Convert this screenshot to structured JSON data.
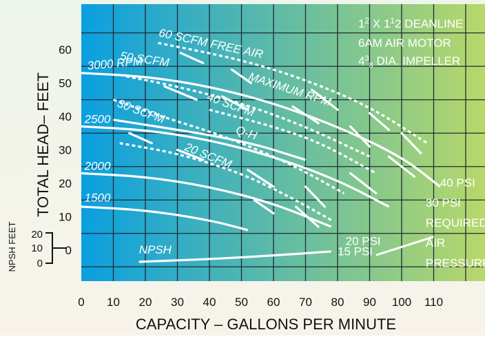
{
  "chart_data": {
    "type": "line",
    "title": "",
    "specs": {
      "line1_a": "1",
      "line1_b": "2",
      "line1_c": " X 1",
      "line1_d": "1",
      "line1_e": "2",
      "line1_f": " DEANLINE",
      "line2": "6AM AIR MOTOR",
      "line3_a": "4",
      "line3_b": "3",
      "line3_c": "8",
      "line3_d": " DIA. IMPELLER"
    },
    "xlabel": "CAPACITY – GALLONS PER MINUTE",
    "ylabel": "TOTAL HEAD– FEET",
    "npsh_axis_label": "NPSH FEET",
    "xlim": [
      0,
      120
    ],
    "ylim": [
      -10,
      70
    ],
    "x_ticks": [
      "0",
      "10",
      "20",
      "30",
      "40",
      "50",
      "60",
      "70",
      "80",
      "90",
      "100",
      "110"
    ],
    "y_ticks": [
      "60",
      "50",
      "40",
      "30",
      "20",
      "10",
      "0"
    ],
    "npsh_ticks": [
      "20",
      "10",
      "0"
    ],
    "grid": true,
    "background_gradient": [
      "#0a9fe0",
      "#b8d86a"
    ],
    "series": [
      {
        "name": "3000 RPM",
        "kind": "speed",
        "x": [
          0,
          20,
          40,
          60,
          80,
          100,
          112
        ],
        "y": [
          53,
          52,
          49,
          44,
          37,
          28,
          19
        ]
      },
      {
        "name": "2500",
        "kind": "speed",
        "x": [
          0,
          20,
          40,
          60,
          80,
          96
        ],
        "y": [
          37,
          36,
          33,
          28,
          21,
          13
        ]
      },
      {
        "name": "2000",
        "kind": "speed",
        "x": [
          0,
          20,
          40,
          60,
          78
        ],
        "y": [
          23,
          22,
          19,
          14,
          7
        ]
      },
      {
        "name": "1500",
        "kind": "speed",
        "x": [
          0,
          20,
          40,
          52
        ],
        "y": [
          13,
          12,
          9,
          6
        ]
      },
      {
        "name": "NPSH",
        "kind": "npsh",
        "x": [
          18,
          40,
          60,
          78
        ],
        "y": [
          -3.5,
          -2.7,
          -1.6,
          -0.4
        ]
      }
    ],
    "max_rpm_line": {
      "name": "MAXIMUM RPM",
      "x": [
        24,
        50,
        70,
        90,
        108
      ],
      "y": [
        62,
        57,
        51,
        43,
        32
      ]
    },
    "scfm_lines": [
      {
        "name": "60 SCFM FREE AIR",
        "x": [
          24,
          50,
          70,
          90,
          108
        ],
        "y": [
          62,
          57,
          51,
          43,
          32
        ]
      },
      {
        "name": "50 SCFM",
        "x": [
          14,
          30,
          50,
          70,
          90
        ],
        "y": [
          52,
          49,
          44,
          37,
          28
        ]
      },
      {
        "name": "40 SCFM",
        "x": [
          40,
          60,
          75,
          92
        ],
        "y": [
          42,
          37,
          32,
          23
        ]
      },
      {
        "name": "30 SCFM",
        "x": [
          10,
          25,
          45,
          65,
          82
        ],
        "y": [
          45,
          40,
          34,
          26,
          17
        ]
      },
      {
        "name": "20 SCFM",
        "x": [
          12,
          30,
          50,
          65,
          78
        ],
        "y": [
          32,
          29,
          23,
          16,
          9
        ]
      },
      {
        "name": "Q-H",
        "x": [
          10,
          50,
          70
        ],
        "y": [
          39,
          33,
          27
        ]
      }
    ],
    "pressure_labels": [
      "40 PSI",
      "30 PSI",
      "20 PSI",
      "15 PSI"
    ],
    "required_label": [
      "REQUIRED",
      "AIR",
      "PRESSURE"
    ],
    "isobar_dashes": [
      {
        "x1": 31,
        "y1": 59,
        "x2": 38,
        "y2": 56
      },
      {
        "x1": 47,
        "y1": 54,
        "x2": 53,
        "y2": 50
      },
      {
        "x1": 72,
        "y1": 48,
        "x2": 80,
        "y2": 42
      },
      {
        "x1": 90,
        "y1": 41,
        "x2": 96,
        "y2": 36
      },
      {
        "x1": 100,
        "y1": 35,
        "x2": 106,
        "y2": 29
      },
      {
        "x1": 26,
        "y1": 49,
        "x2": 36,
        "y2": 45
      },
      {
        "x1": 44,
        "y1": 46,
        "x2": 52,
        "y2": 42
      },
      {
        "x1": 66,
        "y1": 43,
        "x2": 74,
        "y2": 38
      },
      {
        "x1": 84,
        "y1": 37,
        "x2": 90,
        "y2": 31
      },
      {
        "x1": 96,
        "y1": 28,
        "x2": 104,
        "y2": 22
      },
      {
        "x1": 15,
        "y1": 35,
        "x2": 22,
        "y2": 32
      },
      {
        "x1": 30,
        "y1": 30,
        "x2": 38,
        "y2": 27
      },
      {
        "x1": 52,
        "y1": 24,
        "x2": 60,
        "y2": 19
      },
      {
        "x1": 70,
        "y1": 19,
        "x2": 76,
        "y2": 13
      },
      {
        "x1": 84,
        "y1": 23,
        "x2": 92,
        "y2": 17
      },
      {
        "x1": 54,
        "y1": 15,
        "x2": 60,
        "y2": 11
      },
      {
        "x1": 67,
        "y1": 13,
        "x2": 74,
        "y2": 7
      }
    ]
  }
}
